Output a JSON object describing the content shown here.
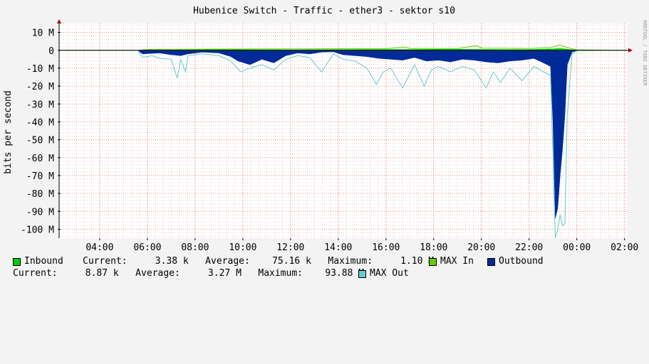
{
  "chart_data": {
    "type": "area",
    "title": "Hubenice Switch - Traffic - ether3 - sektor s10",
    "ylabel": "bits per second",
    "watermark": "RRDTOOL / TOBI OETIKER",
    "ylim": [
      -105,
      15
    ],
    "y_ticks": [
      {
        "v": 10,
        "label": "10 M"
      },
      {
        "v": 0,
        "label": "0"
      },
      {
        "v": -10,
        "label": "-10 M"
      },
      {
        "v": -20,
        "label": "-20 M"
      },
      {
        "v": -30,
        "label": "-30 M"
      },
      {
        "v": -40,
        "label": "-40 M"
      },
      {
        "v": -50,
        "label": "-50 M"
      },
      {
        "v": -60,
        "label": "-60 M"
      },
      {
        "v": -70,
        "label": "-70 M"
      },
      {
        "v": -80,
        "label": "-80 M"
      },
      {
        "v": -90,
        "label": "-90 M"
      },
      {
        "v": -100,
        "label": "-100 M"
      }
    ],
    "xlim": [
      2.3,
      26.1
    ],
    "x_ticks": [
      {
        "v": 4,
        "label": "04:00"
      },
      {
        "v": 6,
        "label": "06:00"
      },
      {
        "v": 8,
        "label": "08:00"
      },
      {
        "v": 10,
        "label": "10:00"
      },
      {
        "v": 12,
        "label": "12:00"
      },
      {
        "v": 14,
        "label": "14:00"
      },
      {
        "v": 16,
        "label": "16:00"
      },
      {
        "v": 18,
        "label": "18:00"
      },
      {
        "v": 20,
        "label": "20:00"
      },
      {
        "v": 22,
        "label": "22:00"
      },
      {
        "v": 24,
        "label": "00:00"
      },
      {
        "v": 26,
        "label": "02:00"
      }
    ],
    "grid": true,
    "series": [
      {
        "name": "Inbound",
        "color": "#00cc00",
        "x": [
          2.3,
          5.6,
          6.0,
          7.5,
          9.0,
          12.0,
          14.0,
          16.0,
          17.0,
          19.0,
          20.0,
          22.0,
          23.0,
          23.3,
          23.6,
          24.0,
          26.1
        ],
        "y": [
          0,
          0,
          0.2,
          0.3,
          0.4,
          0.3,
          0.4,
          0.5,
          0.5,
          0.6,
          0.5,
          0.4,
          0.8,
          1.1,
          0.6,
          0.1,
          0
        ]
      },
      {
        "name": "MAX In",
        "color": "#66cc00",
        "x": [
          2.3,
          5.6,
          6.0,
          7.5,
          9.0,
          12.0,
          14.0,
          16.0,
          16.8,
          17.0,
          19.0,
          19.8,
          20.0,
          22.0,
          22.9,
          23.3,
          23.6,
          24.0,
          26.1
        ],
        "y": [
          0,
          0,
          0.5,
          0.6,
          0.7,
          0.8,
          0.9,
          0.9,
          1.8,
          1.0,
          1.0,
          2.6,
          1.2,
          1.0,
          1.5,
          3.0,
          1.5,
          0.3,
          0
        ]
      },
      {
        "name": "Outbound",
        "color": "#002a97",
        "x": [
          2.3,
          5.6,
          5.8,
          6.5,
          7.0,
          7.4,
          7.7,
          8.3,
          9.0,
          9.5,
          9.8,
          10.3,
          10.8,
          11.3,
          11.8,
          12.3,
          12.8,
          13.3,
          13.8,
          14.2,
          14.7,
          15.2,
          15.7,
          16.2,
          16.7,
          17.2,
          17.7,
          18.2,
          18.7,
          19.2,
          19.7,
          20.2,
          20.7,
          21.2,
          21.7,
          22.2,
          22.6,
          22.9,
          23.0,
          23.1,
          23.2,
          23.3,
          23.4,
          23.5,
          23.6,
          23.8,
          24.0,
          26.1
        ],
        "y": [
          0,
          0,
          -2.0,
          -1.5,
          -2.5,
          -3.0,
          -2.0,
          -1.0,
          -1.5,
          -3.5,
          -6.0,
          -8.0,
          -5.0,
          -7.0,
          -3.0,
          -1.5,
          -2.0,
          -1.0,
          -0.8,
          -2.5,
          -3.0,
          -3.5,
          -4.5,
          -5.0,
          -5.5,
          -4.0,
          -6.0,
          -5.5,
          -6.5,
          -5.0,
          -5.5,
          -6.5,
          -7.0,
          -6.0,
          -5.5,
          -4.5,
          -7.0,
          -9.0,
          -40.0,
          -93.88,
          -88.0,
          -70.0,
          -55.0,
          -36.0,
          -8.0,
          -1.0,
          -0.1,
          0
        ]
      },
      {
        "name": "MAX Out",
        "color": "#66cccc",
        "x": [
          2.3,
          5.6,
          5.8,
          6.2,
          6.5,
          7.0,
          7.25,
          7.4,
          7.6,
          7.7,
          8.3,
          9.0,
          9.5,
          9.9,
          10.3,
          10.8,
          11.3,
          11.8,
          12.3,
          12.8,
          13.3,
          13.8,
          14.2,
          14.7,
          15.2,
          15.6,
          15.9,
          16.2,
          16.7,
          17.2,
          17.6,
          17.9,
          18.2,
          18.7,
          19.2,
          19.7,
          20.2,
          20.5,
          20.8,
          21.2,
          21.7,
          22.2,
          22.6,
          22.9,
          23.0,
          23.1,
          23.2,
          23.3,
          23.4,
          23.5,
          23.6,
          23.8,
          24.0,
          26.1
        ],
        "y": [
          0,
          0,
          -4.0,
          -3.0,
          -4.5,
          -5.0,
          -15.5,
          -5.0,
          -12.0,
          -3.0,
          -2.0,
          -3.0,
          -6.0,
          -12.0,
          -10.0,
          -8.0,
          -11.0,
          -5.0,
          -3.0,
          -4.0,
          -12.0,
          -2.0,
          -5.0,
          -6.0,
          -10.0,
          -19.0,
          -12.0,
          -10.0,
          -21.0,
          -8.0,
          -20.0,
          -11.0,
          -9.0,
          -12.0,
          -9.0,
          -11.0,
          -21.0,
          -12.0,
          -18.0,
          -10.0,
          -17.0,
          -9.0,
          -12.0,
          -14.0,
          -60.0,
          -105.0,
          -100.0,
          -92.0,
          -98.0,
          -97.0,
          -36.0,
          -2.0,
          -0.2,
          0
        ]
      }
    ]
  },
  "legend": {
    "inbound_label": "Inbound",
    "inbound_stats": "Current:     3.38 k   Average:    75.16 k   Maximum:     1.10 M",
    "max_in_label": "MAX In",
    "outbound_label": "Outbound",
    "outbound_stats": "Current:     8.87 k   Average:     3.27 M   Maximum:    93.88 M",
    "max_out_label": "MAX Out"
  }
}
